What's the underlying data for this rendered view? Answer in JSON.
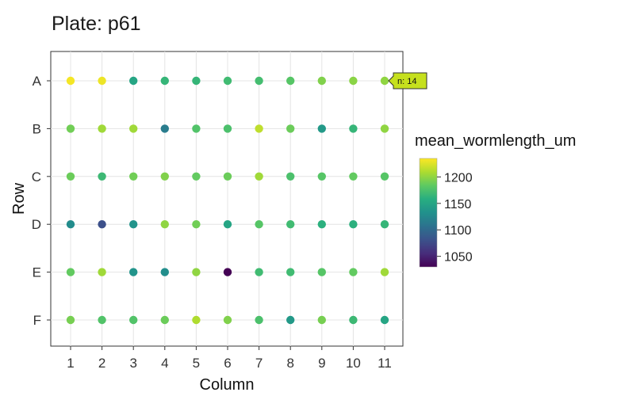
{
  "chart_data": {
    "type": "scatter",
    "title": "Plate: p61",
    "xlabel": "Column",
    "ylabel": "Row",
    "x_ticks": [
      "1",
      "2",
      "3",
      "4",
      "5",
      "6",
      "7",
      "8",
      "9",
      "10",
      "11"
    ],
    "y_ticks": [
      "A",
      "B",
      "C",
      "D",
      "E",
      "F"
    ],
    "grid": true,
    "color_variable": "mean_wormlength_um",
    "colorbar": {
      "min": 1030,
      "max": 1235,
      "ticks": [
        "1200",
        "1150",
        "1100",
        "1050"
      ]
    },
    "rows": [
      {
        "row": "A",
        "values": [
          1232,
          1230,
          1150,
          1165,
          1165,
          1170,
          1172,
          1180,
          1195,
          1198,
          1200
        ]
      },
      {
        "row": "B",
        "values": [
          1190,
          1205,
          1205,
          1115,
          1178,
          1175,
          1215,
          1188,
          1140,
          1165,
          1200
        ]
      },
      {
        "row": "C",
        "values": [
          1188,
          1168,
          1190,
          1195,
          1185,
          1188,
          1205,
          1175,
          1180,
          1185,
          1180
        ]
      },
      {
        "row": "D",
        "values": [
          1128,
          1080,
          1135,
          1200,
          1190,
          1150,
          1180,
          1170,
          1160,
          1160,
          1165
        ]
      },
      {
        "row": "E",
        "values": [
          1185,
          1205,
          1135,
          1130,
          1200,
          1030,
          1170,
          1170,
          1180,
          1185,
          1205
        ]
      },
      {
        "row": "F",
        "values": [
          1192,
          1178,
          1178,
          1188,
          1210,
          1195,
          1175,
          1140,
          1192,
          1168,
          1150
        ]
      }
    ],
    "tooltip": {
      "row": "A",
      "column": "11",
      "text": "n: 14"
    }
  }
}
